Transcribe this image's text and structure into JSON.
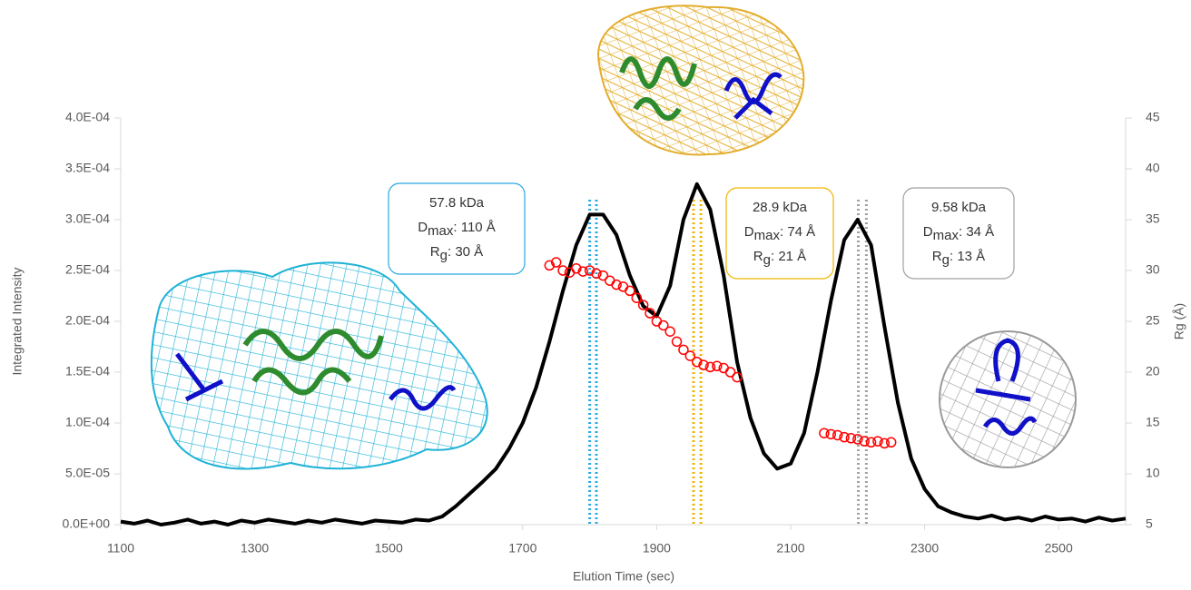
{
  "chart_data": {
    "type": "line",
    "x_label": "Elution Time (sec)",
    "y_label": "Integrated Intensity",
    "y2_label": "Rg (Å)",
    "xlim": [
      1100,
      2600
    ],
    "xticks": [
      1100,
      1300,
      1500,
      1700,
      1900,
      2100,
      2300,
      2500
    ],
    "ylim": [
      0,
      0.0004
    ],
    "yticks": [
      {
        "value": 0,
        "label": "0.0E+00"
      },
      {
        "value": 5e-05,
        "label": "5.0E-05"
      },
      {
        "value": 0.0001,
        "label": "1.0E-04"
      },
      {
        "value": 0.00015,
        "label": "1.5E-04"
      },
      {
        "value": 0.0002,
        "label": "2.0E-04"
      },
      {
        "value": 0.00025,
        "label": "2.5E-04"
      },
      {
        "value": 0.0003,
        "label": "3.0E-04"
      },
      {
        "value": 0.00035,
        "label": "3.5E-04"
      },
      {
        "value": 0.0004,
        "label": "4.0E-04"
      }
    ],
    "y2lim": [
      5,
      45
    ],
    "y2ticks": [
      5,
      10,
      15,
      20,
      25,
      30,
      35,
      40,
      45
    ],
    "series": [
      {
        "type": "line",
        "color": "#000000",
        "x": [
          1100,
          1120,
          1140,
          1160,
          1180,
          1200,
          1220,
          1240,
          1260,
          1280,
          1300,
          1320,
          1340,
          1360,
          1380,
          1400,
          1420,
          1440,
          1460,
          1480,
          1500,
          1520,
          1540,
          1560,
          1580,
          1600,
          1620,
          1640,
          1660,
          1680,
          1700,
          1720,
          1740,
          1760,
          1780,
          1800,
          1820,
          1840,
          1860,
          1880,
          1900,
          1920,
          1940,
          1960,
          1980,
          2000,
          2020,
          2040,
          2060,
          2080,
          2100,
          2120,
          2140,
          2160,
          2180,
          2200,
          2220,
          2240,
          2260,
          2280,
          2300,
          2320,
          2340,
          2360,
          2380,
          2400,
          2420,
          2440,
          2460,
          2480,
          2500,
          2520,
          2540,
          2560,
          2580,
          2600
        ],
        "values": [
          3e-06,
          1e-06,
          4e-06,
          0,
          2e-06,
          5e-06,
          1e-06,
          3e-06,
          0,
          4e-06,
          2e-06,
          5e-06,
          3e-06,
          1e-06,
          4e-06,
          2e-06,
          5e-06,
          3e-06,
          1e-06,
          4e-06,
          3e-06,
          2e-06,
          5e-06,
          4e-06,
          8e-06,
          1.8e-05,
          3e-05,
          4.2e-05,
          5.5e-05,
          7.5e-05,
          0.0001,
          0.000135,
          0.00018,
          0.00023,
          0.000275,
          0.000305,
          0.000305,
          0.000285,
          0.000245,
          0.000215,
          0.000205,
          0.000235,
          0.0003,
          0.000335,
          0.00031,
          0.000245,
          0.00016,
          0.000105,
          7e-05,
          5.5e-05,
          6e-05,
          9e-05,
          0.00015,
          0.00022,
          0.00028,
          0.0003,
          0.000275,
          0.000195,
          0.00012,
          6.5e-05,
          3.5e-05,
          1.8e-05,
          1.2e-05,
          8e-06,
          6e-06,
          9e-06,
          5e-06,
          7e-06,
          4e-06,
          8e-06,
          5e-06,
          6e-06,
          3e-06,
          7e-06,
          4e-06,
          6e-06
        ]
      },
      {
        "type": "scatter",
        "axis": "y2",
        "color": "#ff0000",
        "x": [
          1740,
          1750,
          1760,
          1770,
          1780,
          1790,
          1800,
          1810,
          1820,
          1830,
          1840,
          1850,
          1860,
          1870,
          1880,
          1890,
          1900,
          1910,
          1920,
          1930,
          1940,
          1950,
          1960,
          1970,
          1980,
          1990,
          2000,
          2010,
          2020,
          2150,
          2160,
          2170,
          2180,
          2190,
          2200,
          2210,
          2220,
          2230,
          2240,
          2250
        ],
        "values": [
          30.5,
          30.8,
          30.0,
          29.8,
          30.2,
          29.9,
          30.0,
          29.7,
          29.5,
          29.0,
          28.6,
          28.4,
          28.0,
          27.3,
          26.6,
          25.8,
          25.0,
          24.6,
          24.0,
          23.0,
          22.2,
          21.6,
          21.0,
          20.7,
          20.5,
          20.6,
          20.4,
          20.0,
          19.5,
          14.0,
          13.9,
          13.8,
          13.6,
          13.5,
          13.4,
          13.2,
          13.1,
          13.2,
          13.0,
          13.1
        ]
      }
    ],
    "markers": [
      {
        "x": 1800,
        "color": "#29a8e0"
      },
      {
        "x": 1810,
        "color": "#29a8e0"
      },
      {
        "x": 1955,
        "color": "#f0b400"
      },
      {
        "x": 1966,
        "color": "#f0b400"
      },
      {
        "x": 2201,
        "color": "#a0a0a0"
      },
      {
        "x": 2213,
        "color": "#a0a0a0"
      }
    ],
    "annotations": [
      {
        "color": "#29a8e0",
        "lines": [
          [
            "57.8 kDa"
          ],
          [
            "D",
            "max",
            ": 110 Å"
          ],
          [
            "R",
            "g",
            ": 30 Å"
          ]
        ]
      },
      {
        "color": "#f0b400",
        "lines": [
          [
            "28.9 kDa"
          ],
          [
            "D",
            "max",
            ": 74 Å"
          ],
          [
            "R",
            "g",
            ": 21 Å"
          ]
        ]
      },
      {
        "color": "#a0a0a0",
        "lines": [
          [
            "9.58 kDa"
          ],
          [
            "D",
            "max",
            ": 34 Å"
          ],
          [
            "R",
            "g",
            ": 13 Å"
          ]
        ]
      }
    ]
  }
}
